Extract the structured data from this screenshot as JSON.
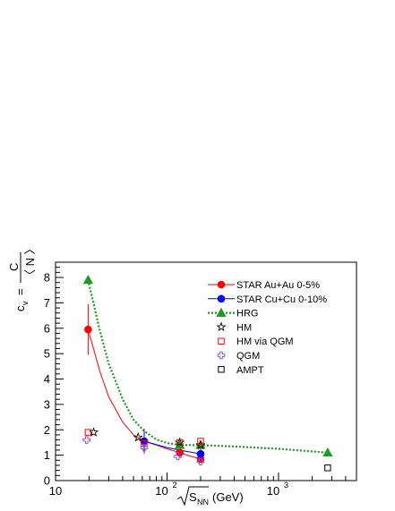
{
  "chart_data": {
    "type": "scatter",
    "x_scale": "log",
    "xlim": [
      10,
      5000
    ],
    "ylim": [
      0,
      8.6
    ],
    "xlabel": "√S_NN (GeV)",
    "xlabel_parts": {
      "root": "S",
      "sub": "NN",
      "unit": "(GeV)"
    },
    "ylabel_parts": {
      "lhs": "c",
      "lhs_sub": "v",
      "eq": "=",
      "num": "C",
      "den": "〈 N 〉"
    },
    "x_ticks": [
      {
        "value": 10,
        "label": "10"
      },
      {
        "value": 100,
        "label": "10",
        "exp": "2"
      },
      {
        "value": 1000,
        "label": "10",
        "exp": "3"
      }
    ],
    "y_ticks": [
      {
        "value": 0,
        "label": "0"
      },
      {
        "value": 1,
        "label": "1"
      },
      {
        "value": 2,
        "label": "2"
      },
      {
        "value": 3,
        "label": "3"
      },
      {
        "value": 4,
        "label": "4"
      },
      {
        "value": 5,
        "label": "5"
      },
      {
        "value": 6,
        "label": "6"
      },
      {
        "value": 7,
        "label": "7"
      },
      {
        "value": 8,
        "label": "8"
      }
    ],
    "series": [
      {
        "name": "STAR Au+Au 0-5%",
        "marker": "circle",
        "color": "#ff0000",
        "filled": true,
        "line": "solid",
        "x": [
          19.6,
          62.4,
          130,
          200
        ],
        "y": [
          5.95,
          1.55,
          1.1,
          0.85
        ],
        "err": [
          1.0,
          0.5,
          0.2,
          0.15
        ],
        "curve_x": [
          19.6,
          25,
          30,
          40,
          50,
          62.4,
          80,
          100,
          130,
          160,
          200
        ],
        "curve_y": [
          5.95,
          4.3,
          3.3,
          2.3,
          1.8,
          1.55,
          1.4,
          1.25,
          1.1,
          0.97,
          0.85
        ]
      },
      {
        "name": "STAR Cu+Cu 0-10%",
        "marker": "circle",
        "color": "#0000ff",
        "filled": true,
        "line": "solid",
        "x": [
          62.4,
          200
        ],
        "y": [
          1.55,
          1.05
        ],
        "err": [
          0.4,
          0.2
        ],
        "curve_x": [
          62.4,
          100,
          150,
          200
        ],
        "curve_y": [
          1.55,
          1.3,
          1.15,
          1.05
        ]
      },
      {
        "name": "HRG",
        "marker": "triangle",
        "color": "#229922",
        "filled": true,
        "line": "dotted",
        "x": [
          19.6,
          130,
          200,
          2760
        ],
        "y": [
          7.9,
          1.4,
          1.4,
          1.1
        ],
        "curve_x": [
          19.6,
          25,
          30,
          40,
          50,
          62.4,
          80,
          100,
          130,
          200,
          500,
          1000,
          2760
        ],
        "curve_y": [
          7.9,
          5.9,
          4.6,
          3.2,
          2.4,
          1.95,
          1.62,
          1.48,
          1.4,
          1.4,
          1.32,
          1.25,
          1.1
        ]
      },
      {
        "name": "HM",
        "marker": "star",
        "color": "#000000",
        "filled": false,
        "x": [
          22,
          55,
          130,
          200
        ],
        "y": [
          1.9,
          1.7,
          1.5,
          1.4
        ]
      },
      {
        "name": "HM via QGM",
        "marker": "square",
        "color": "#ff0000",
        "filled": false,
        "x": [
          19.6,
          62.4,
          130,
          200
        ],
        "y": [
          1.9,
          1.45,
          1.5,
          1.55
        ]
      },
      {
        "name": "QGM",
        "marker": "cross",
        "color": "#8844cc",
        "filled": false,
        "x": [
          19,
          62.4,
          125,
          200
        ],
        "y": [
          1.6,
          1.3,
          0.95,
          0.75
        ]
      },
      {
        "name": "AMPT",
        "marker": "square",
        "color": "#000000",
        "filled": false,
        "x": [
          2760
        ],
        "y": [
          0.5
        ]
      }
    ]
  }
}
